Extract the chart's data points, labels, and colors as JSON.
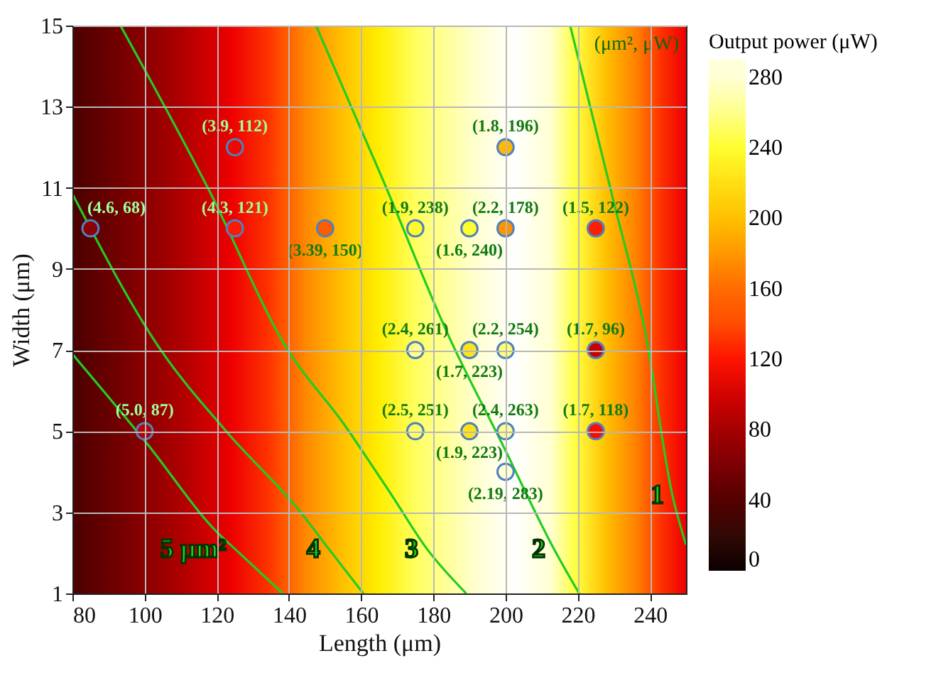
{
  "chart_data": {
    "type": "scatter",
    "xlabel": "Length (μm)",
    "ylabel": "Width (μm)",
    "clabel": "Output power (μW)",
    "annotations": [
      "(μm², μW)"
    ],
    "xlim": [
      80,
      250
    ],
    "ylim": [
      1,
      15
    ],
    "xticks": [
      80,
      100,
      120,
      140,
      160,
      180,
      200,
      220,
      240
    ],
    "yticks": [
      1,
      3,
      5,
      7,
      9,
      11,
      13,
      15
    ],
    "clim": [
      0,
      290
    ],
    "cticks": [
      0,
      40,
      80,
      120,
      160,
      200,
      240,
      280
    ],
    "grid": true,
    "series": [
      {
        "type": "scatter",
        "color": "#4f81bd",
        "marker": "circle",
        "x": [
          125,
          200,
          85,
          125,
          150,
          175,
          190,
          200,
          225,
          175,
          190,
          200,
          225,
          100,
          175,
          190,
          200,
          225,
          200
        ],
        "values": [
          12,
          12,
          10,
          10,
          10,
          10,
          10,
          10,
          10,
          7,
          7,
          7,
          7,
          5,
          5,
          5,
          5,
          5,
          4
        ],
        "cvalues": [
          112,
          196,
          68,
          121,
          150,
          238,
          240,
          178,
          122,
          261,
          223,
          254,
          96,
          87,
          251,
          223,
          263,
          118,
          283
        ],
        "value_labels": [
          "(3.9, 112)",
          "(1.8, 196)",
          "(4.6, 68)",
          "(4.3, 121)",
          "(3.39, 150)",
          "(1.9, 238)",
          "(1.6, 240)",
          "(2.2, 178)",
          "(1.5, 122)",
          "(2.4, 261)",
          "(1.7, 223)",
          "(2.2, 254)",
          "(1.7, 96)",
          "(5.0, 87)",
          "(2.5, 251)",
          "(1.9, 223)",
          "(2.4, 263)",
          "(1.7, 118)",
          "(2.19, 283)"
        ]
      },
      {
        "type": "line",
        "name": "1",
        "color": "#22cc22",
        "x": [
          217.9,
          229.7,
          238.8,
          246.2,
          250
        ],
        "values": [
          15,
          10.75,
          7.4,
          3.43,
          2.2
        ]
      },
      {
        "type": "line",
        "name": "2",
        "color": "#22cc22",
        "x": [
          147.5,
          166,
          185,
          199,
          213.4,
          220.4
        ],
        "values": [
          15,
          11.2,
          7.2,
          4.7,
          2.1,
          1
        ]
      },
      {
        "type": "line",
        "name": "3",
        "color": "#22cc22",
        "x": [
          93.3,
          117.5,
          139.7,
          155,
          168.4,
          178.2,
          189.1
        ],
        "values": [
          15,
          11,
          7,
          5.2,
          3.43,
          2.1,
          1
        ]
      },
      {
        "type": "line",
        "name": "4",
        "color": "#22cc22",
        "x": [
          80,
          104.5,
          122.6,
          143.6,
          151,
          160.6
        ],
        "values": [
          10.85,
          7,
          5,
          2.96,
          2.1,
          1
        ]
      },
      {
        "type": "line",
        "name": "5 μm²",
        "color": "#22cc22",
        "x": [
          80,
          100.6,
          120.2,
          125,
          138.3
        ],
        "values": [
          6.9,
          4.7,
          2.5,
          2.1,
          1
        ]
      }
    ]
  }
}
